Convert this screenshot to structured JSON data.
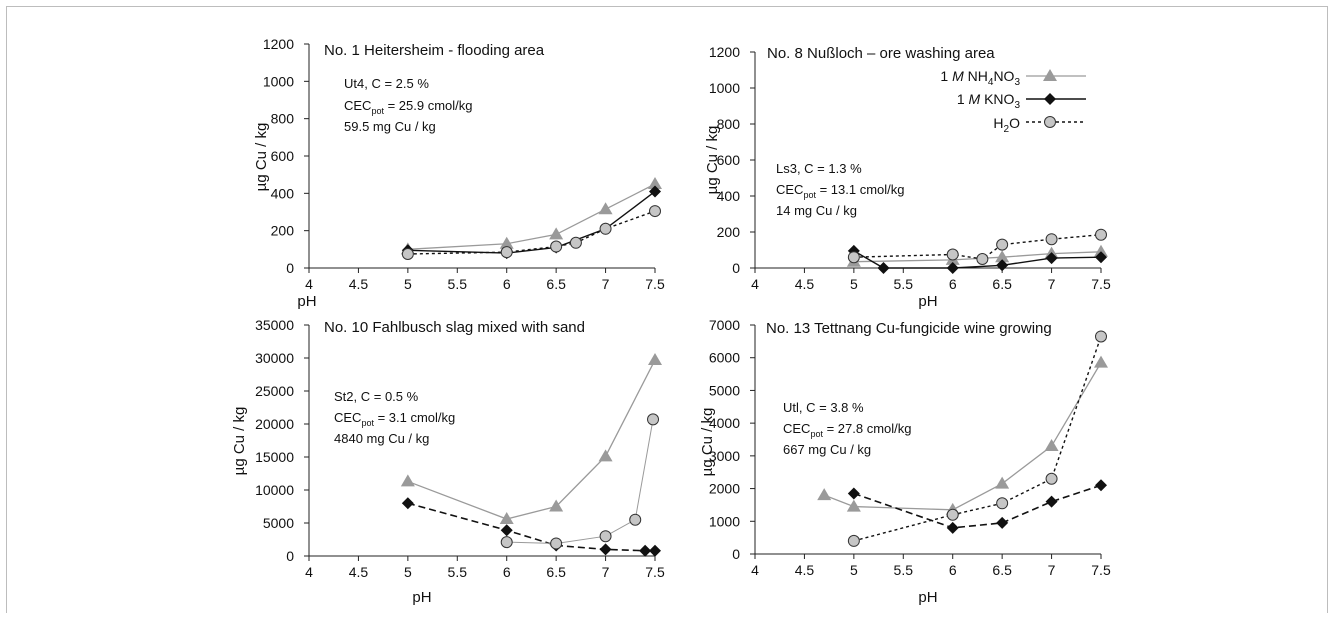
{
  "chart_data": [
    {
      "type": "line",
      "title": "No. 1 Heitersheim - flooding area",
      "xlabel": "pH",
      "ylabel": "µg Cu / kg",
      "xlim": [
        4,
        7.5
      ],
      "ylim": [
        0,
        1200
      ],
      "xticks": [
        "4",
        "4.5",
        "5",
        "5.5",
        "6",
        "6.5",
        "7",
        "7.5"
      ],
      "yticks": [
        "0",
        "200",
        "400",
        "600",
        "800",
        "1000",
        "1200"
      ],
      "info": {
        "line1": "Ut4, C = 2.5 %",
        "cec_pre": "CEC",
        "cec_sub": "pot",
        "cec_post": " = 25.9 cmol/kg",
        "line3": "59.5 mg Cu / kg"
      },
      "series": [
        {
          "key": "nh4no3",
          "points": [
            [
              5,
              100
            ],
            [
              6,
              130
            ],
            [
              6.5,
              180
            ],
            [
              7,
              315
            ],
            [
              7.5,
              450
            ]
          ]
        },
        {
          "key": "kno3",
          "points": [
            [
              5,
              95
            ],
            [
              6,
              80
            ],
            [
              6.5,
              110
            ],
            [
              7,
              210
            ],
            [
              7.5,
              410
            ]
          ]
        },
        {
          "key": "h2o",
          "points": [
            [
              5,
              75
            ],
            [
              6,
              85
            ],
            [
              6.5,
              115
            ],
            [
              6.7,
              135
            ],
            [
              7,
              210
            ],
            [
              7.5,
              305
            ]
          ]
        }
      ]
    },
    {
      "type": "line",
      "title": "No. 8 Nußloch – ore washing area",
      "xlabel": "pH",
      "ylabel": "µg Cu / kg",
      "xlim": [
        4,
        7.5
      ],
      "ylim": [
        0,
        1200
      ],
      "xticks": [
        "4",
        "4.5",
        "5",
        "5.5",
        "6",
        "6.5",
        "7",
        "7.5"
      ],
      "yticks": [
        "0",
        "200",
        "400",
        "600",
        "800",
        "1000",
        "1200"
      ],
      "info": {
        "line1": "Ls3, C = 1.3 %",
        "cec_pre": "CEC",
        "cec_sub": "pot",
        "cec_post": " = 13.1 cmol/kg",
        "line3": "14 mg Cu / kg"
      },
      "series": [
        {
          "key": "nh4no3",
          "points": [
            [
              5,
              35
            ],
            [
              6,
              45
            ],
            [
              6.5,
              60
            ],
            [
              7,
              80
            ],
            [
              7.5,
              90
            ]
          ]
        },
        {
          "key": "kno3",
          "points": [
            [
              5,
              95
            ],
            [
              5.3,
              0
            ],
            [
              6,
              0
            ],
            [
              6.5,
              15
            ],
            [
              7,
              55
            ],
            [
              7.5,
              60
            ]
          ]
        },
        {
          "key": "h2o",
          "points": [
            [
              5,
              60
            ],
            [
              6,
              75
            ],
            [
              6.3,
              50
            ],
            [
              6.5,
              130
            ],
            [
              7,
              160
            ],
            [
              7.5,
              185
            ]
          ]
        }
      ]
    },
    {
      "type": "line",
      "title": "No. 10 Fahlbusch slag mixed with sand",
      "xlabel": "pH",
      "ylabel": "µg Cu / kg",
      "xlim": [
        4,
        7.5
      ],
      "ylim": [
        0,
        35000
      ],
      "xticks": [
        "4",
        "4.5",
        "5",
        "5.5",
        "6",
        "6.5",
        "7",
        "7.5"
      ],
      "yticks": [
        "0",
        "5000",
        "10000",
        "15000",
        "20000",
        "25000",
        "30000",
        "35000"
      ],
      "info": {
        "line1": "St2, C = 0.5 %",
        "cec_pre": "CEC",
        "cec_sub": "pot",
        "cec_post": " = 3.1 cmol/kg",
        "line3": "4840 mg Cu / kg"
      },
      "series": [
        {
          "key": "nh4no3",
          "points": [
            [
              5,
              11300
            ],
            [
              6,
              5600
            ],
            [
              6.5,
              7500
            ],
            [
              7,
              15100
            ],
            [
              7.5,
              29700
            ]
          ]
        },
        {
          "key": "kno3",
          "points": [
            [
              5,
              8000
            ],
            [
              6,
              3900
            ],
            [
              6.5,
              1600
            ],
            [
              7,
              1000
            ],
            [
              7.4,
              800
            ],
            [
              7.5,
              800
            ]
          ]
        },
        {
          "key": "h2o",
          "points": [
            [
              6,
              2100
            ],
            [
              6.5,
              1900
            ],
            [
              7,
              3000
            ],
            [
              7.3,
              5500
            ],
            [
              7.48,
              20700
            ]
          ]
        }
      ]
    },
    {
      "type": "line",
      "title": "No. 13 Tettnang Cu-fungicide wine growing",
      "xlabel": "pH",
      "ylabel": "µg Cu / kg",
      "xlim": [
        4,
        7.5
      ],
      "ylim": [
        0,
        7000
      ],
      "xticks": [
        "4",
        "4.5",
        "5",
        "5.5",
        "6",
        "6.5",
        "7",
        "7.5"
      ],
      "yticks": [
        "0",
        "1000",
        "2000",
        "3000",
        "4000",
        "5000",
        "6000",
        "7000"
      ],
      "info": {
        "line1": "Utl, C = 3.8 %",
        "cec_pre": "CEC",
        "cec_sub": "pot",
        "cec_post": " = 27.8 cmol/kg",
        "line3": "667 mg Cu / kg"
      },
      "series": [
        {
          "key": "nh4no3",
          "points": [
            [
              4.7,
              1800
            ],
            [
              5,
              1450
            ],
            [
              6,
              1350
            ],
            [
              6.5,
              2150
            ],
            [
              7,
              3300
            ],
            [
              7.5,
              5850
            ]
          ]
        },
        {
          "key": "kno3",
          "points": [
            [
              5,
              1850
            ],
            [
              6,
              800
            ],
            [
              6.5,
              950
            ],
            [
              7,
              1600
            ],
            [
              7.5,
              2100
            ]
          ]
        },
        {
          "key": "h2o",
          "points": [
            [
              5,
              400
            ],
            [
              6,
              1200
            ],
            [
              6.5,
              1550
            ],
            [
              7,
              2300
            ],
            [
              7.5,
              6650
            ]
          ]
        }
      ]
    }
  ],
  "legend": {
    "nh4no3": {
      "prefix": "1 ",
      "italic": "M",
      "main": " NH",
      "sub1": "4",
      "mid": "NO",
      "sub2": "3"
    },
    "kno3": {
      "prefix": "1 ",
      "italic": "M",
      "main": " KNO",
      "sub": "3"
    },
    "h2o": {
      "main": "H",
      "sub": "2",
      "post": "O"
    }
  },
  "colors": {
    "nh4no3": "#9a9a9a",
    "kno3": "#111111",
    "h2o_fill": "#c6c6c6",
    "h2o_stroke": "#333333"
  }
}
